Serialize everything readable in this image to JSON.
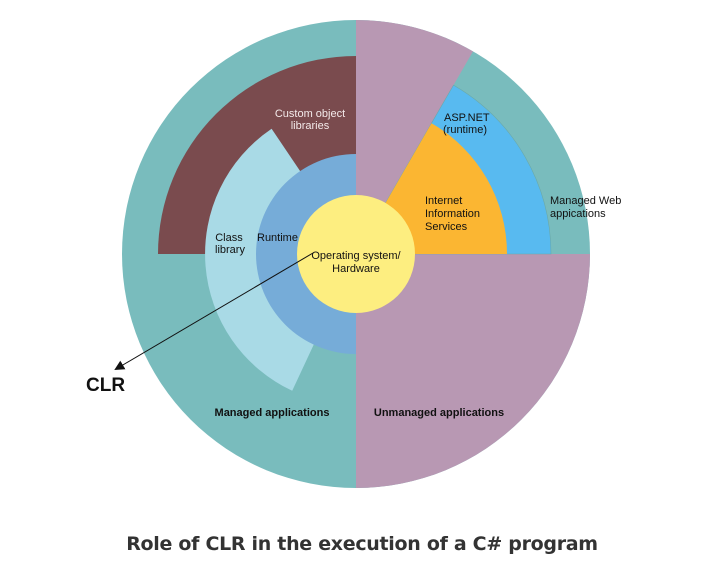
{
  "diagram": {
    "colors": {
      "managed": "#79bcbd",
      "unmanaged": "#b898b3",
      "custom_object_libraries": "#7a4b4e",
      "class_library": "#a9dae6",
      "runtime": "#76acd8",
      "os": "#fdee80",
      "iis": "#fbb632",
      "aspnet": "#58baf0"
    },
    "labels": {
      "custom_object_libraries": [
        "Custom object",
        "libraries"
      ],
      "class_library": [
        "Class",
        "library"
      ],
      "runtime": "Runtime",
      "os": [
        "Operating system/",
        "Hardware"
      ],
      "aspnet": [
        "ASP.NET",
        "(runtime)"
      ],
      "iis": [
        "Internet",
        "Information",
        "Services"
      ],
      "managed_web": [
        "Managed Web",
        "appications"
      ],
      "managed_apps": "Managed applications",
      "unmanaged_apps": "Unmanaged applications",
      "clr": "CLR"
    }
  },
  "caption": "Role of CLR in the execution of a C# program"
}
